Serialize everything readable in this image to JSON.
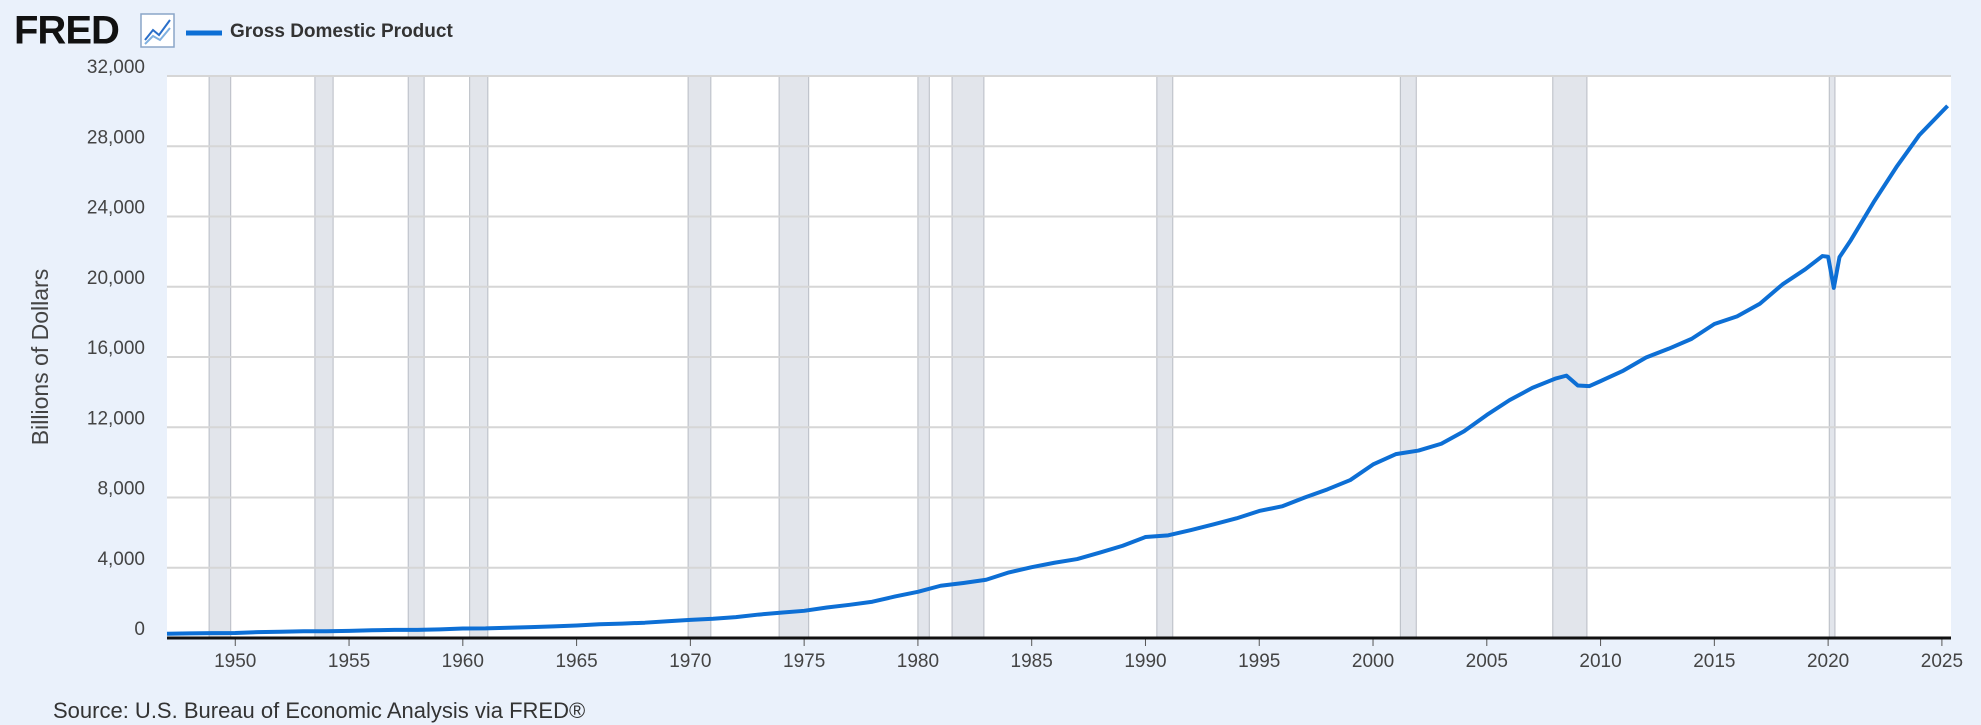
{
  "brand": "FRED",
  "chart_data": {
    "type": "line",
    "y_label": "Billions of Dollars",
    "source": "Source: U.S. Bureau of Economic Analysis via FRED®",
    "x": [
      1947,
      1948,
      1949,
      1950,
      1951,
      1952,
      1953,
      1954,
      1955,
      1956,
      1957,
      1958,
      1959,
      1960,
      1961,
      1962,
      1963,
      1964,
      1965,
      1966,
      1967,
      1968,
      1969,
      1970,
      1971,
      1972,
      1973,
      1974,
      1975,
      1976,
      1977,
      1978,
      1979,
      1980,
      1981,
      1982,
      1983,
      1984,
      1985,
      1986,
      1987,
      1988,
      1989,
      1990,
      1991,
      1992,
      1993,
      1994,
      1995,
      1996,
      1997,
      1998,
      1999,
      2000,
      2001,
      2002,
      2003,
      2004,
      2005,
      2006,
      2007,
      2008,
      2008.5,
      2009,
      2009.5,
      2010,
      2011,
      2012,
      2013,
      2014,
      2015,
      2016,
      2017,
      2018,
      2019,
      2019.75,
      2020,
      2020.25,
      2020.5,
      2021,
      2022,
      2023,
      2024,
      2025,
      2025.25
    ],
    "series": [
      {
        "name": "Gross Domestic Product",
        "color": "#0d6fd5",
        "values": [
          243,
          266,
          275,
          281,
          336,
          358,
          382,
          387,
          407,
          439,
          465,
          466,
          494,
          541,
          545,
          585,
          617,
          663,
          709,
          780,
          820,
          872,
          953,
          1030,
          1095,
          1190,
          1334,
          1444,
          1548,
          1738,
          1890,
          2066,
          2365,
          2630,
          2975,
          3132,
          3316,
          3736,
          4031,
          4286,
          4496,
          4862,
          5254,
          5748,
          5846,
          6144,
          6470,
          6813,
          7233,
          7496,
          8000,
          8466,
          8993,
          9880,
          10469,
          10672,
          11061,
          11773,
          12699,
          13544,
          14240,
          14764,
          14939,
          14379,
          14340,
          14626,
          15224,
          15973,
          16475,
          17032,
          17879,
          18315,
          19034,
          20137,
          20998,
          21748,
          21706,
          19935,
          21684,
          22657,
          24813,
          26813,
          28624,
          29963,
          30300
        ]
      }
    ],
    "recessions": [
      [
        1948.85,
        1949.8
      ],
      [
        1953.5,
        1954.3
      ],
      [
        1957.6,
        1958.3
      ],
      [
        1960.3,
        1961.1
      ],
      [
        1969.9,
        1970.9
      ],
      [
        1973.9,
        1975.2
      ],
      [
        1980.0,
        1980.5
      ],
      [
        1981.5,
        1982.9
      ],
      [
        1990.5,
        1991.2
      ],
      [
        2001.2,
        2001.9
      ],
      [
        2007.9,
        2009.4
      ],
      [
        2020.05,
        2020.3
      ]
    ],
    "xlim": [
      1947,
      2025.4
    ],
    "xticks": [
      1950,
      1955,
      1960,
      1965,
      1970,
      1975,
      1980,
      1985,
      1990,
      1995,
      2000,
      2005,
      2010,
      2015,
      2020,
      2025
    ],
    "ylim": [
      0,
      32000
    ],
    "yticks": [
      0,
      {
        "value": 4000,
        "label": "4,000"
      },
      {
        "value": 8000,
        "label": "8,000"
      },
      {
        "value": 12000,
        "label": "12,000"
      },
      {
        "value": 16000,
        "label": "16,000"
      },
      {
        "value": 20000,
        "label": "20,000"
      },
      {
        "value": 24000,
        "label": "24,000"
      },
      {
        "value": 28000,
        "label": "28,000"
      },
      {
        "value": 32000,
        "label": "32,000"
      }
    ],
    "grid": true
  }
}
